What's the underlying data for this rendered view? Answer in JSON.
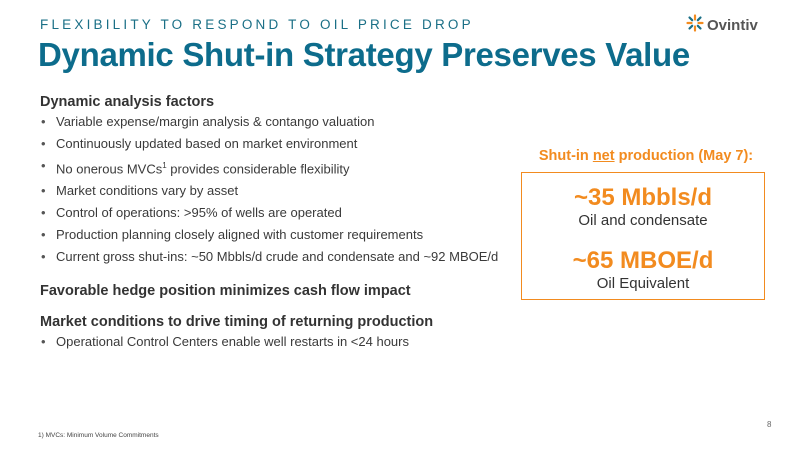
{
  "header": {
    "kicker": "FLEXIBILITY TO RESPOND TO OIL PRICE DROP",
    "title": "Dynamic Shut-in Strategy Preserves Value",
    "logo_text": "Ovintiv",
    "logo_symbol": "ovintiv-logo-icon"
  },
  "sections": [
    {
      "heading": "Dynamic analysis factors",
      "bullets": [
        "Variable expense/margin analysis & contango valuation",
        "Continuously updated based on market environment",
        "provides considerable flexibility",
        "Market conditions vary by asset",
        "Control of operations: >95% of wells are operated",
        "Production planning closely aligned with customer requirements",
        "Current gross shut-ins: ~50 Mbbls/d crude and condensate and ~92 MBOE/d"
      ],
      "mvc_prefix": "No onerous MVCs",
      "mvc_sup": "1"
    },
    {
      "heading": "Favorable hedge position minimizes cash flow impact"
    },
    {
      "heading": "Market conditions to drive timing of returning production",
      "bullets": [
        "Operational Control Centers enable well restarts in <24 hours"
      ]
    }
  ],
  "sidebar": {
    "title_prefix": "Shut-in ",
    "title_underlined": "net",
    "title_suffix": " production (May 7):",
    "stats": [
      {
        "value": "~35 Mbbls/d",
        "label": "Oil and condensate"
      },
      {
        "value": "~65 MBOE/d",
        "label": "Oil Equivalent"
      }
    ]
  },
  "footnote": "1) MVCs: Minimum Volume Commitments",
  "page_number": "8",
  "colors": {
    "title_teal": "#0d6c8c",
    "accent_orange": "#f28b1f",
    "logo_orange": "#f28b1f",
    "logo_teal": "#1a6f86"
  }
}
